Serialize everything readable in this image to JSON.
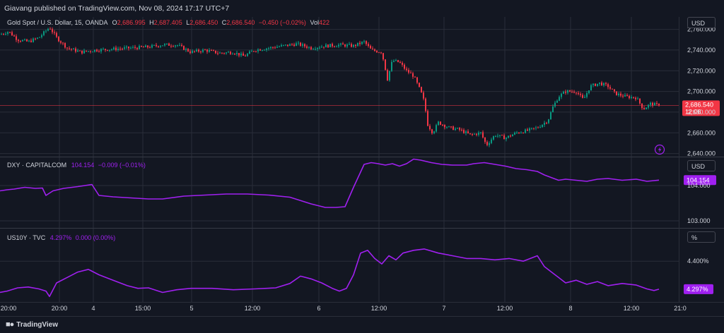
{
  "header": {
    "published": "Giavang published on TradingView.com, Nov 08, 2024 17:17 UTC+7"
  },
  "footer": {
    "brand": "TradingView"
  },
  "colors": {
    "bg": "#131722",
    "up": "#089981",
    "down": "#f23645",
    "line": "#a020f0",
    "grid": "#2a2e39",
    "priceline": "#f23645"
  },
  "panes": {
    "gold": {
      "name": "Gold Spot / U.S. Dollar, 15, OANDA",
      "o_label": "O",
      "o": "2,686.995",
      "h_label": "H",
      "h": "2,687.405",
      "l_label": "L",
      "l": "2,686.450",
      "c_label": "C",
      "c": "2,686.540",
      "chg": "−0.450 (−0.02%)",
      "vol_label": "Vol",
      "vol": "422",
      "currency": "USD",
      "last_price": "2,686.540",
      "countdown": "12:06",
      "yticks": [
        "2,760.000",
        "2,740.000",
        "2,720.000",
        "2,700.000",
        "2,680.000",
        "2,660.000",
        "2,640.000"
      ]
    },
    "dxy": {
      "name": "DXY · CAPITALCOM",
      "value": "104.154",
      "chg": "−0.009 (−0.01%)",
      "currency": "USD",
      "yticks": [
        "104.000",
        "103.000"
      ],
      "last_label": "104.154"
    },
    "us10y": {
      "name": "US10Y · TVC",
      "value": "4.297%",
      "chg": "0.000 (0.00%)",
      "currency": "%",
      "yticks": [
        "4.400%"
      ],
      "last_label": "4.297%"
    }
  },
  "xticks": [
    "20:00",
    "20:00",
    "4",
    "15:00",
    "5",
    "12:00",
    "6",
    "12:00",
    "7",
    "12:00",
    "8",
    "12:00",
    "21:0"
  ],
  "chart_data": [
    {
      "type": "candlestick",
      "title": "Gold Spot / U.S. Dollar, 15, OANDA",
      "ylabel": "USD",
      "ylim": [
        2637,
        2772
      ],
      "x_labels": [
        "20:00",
        "4",
        "15:00",
        "5",
        "12:00",
        "6",
        "12:00",
        "7",
        "12:00",
        "8",
        "12:00"
      ],
      "close_path": [
        [
          0,
          2755
        ],
        [
          12,
          2758
        ],
        [
          25,
          2750
        ],
        [
          40,
          2748
        ],
        [
          55,
          2752
        ],
        [
          70,
          2762
        ],
        [
          80,
          2752
        ],
        [
          95,
          2742
        ],
        [
          115,
          2738
        ],
        [
          135,
          2740
        ],
        [
          160,
          2741
        ],
        [
          185,
          2742
        ],
        [
          210,
          2743
        ],
        [
          230,
          2745
        ],
        [
          250,
          2745
        ],
        [
          270,
          2738
        ],
        [
          290,
          2740
        ],
        [
          310,
          2737
        ],
        [
          330,
          2738
        ],
        [
          345,
          2734
        ],
        [
          360,
          2740
        ],
        [
          380,
          2742
        ],
        [
          400,
          2744
        ],
        [
          420,
          2746
        ],
        [
          440,
          2742
        ],
        [
          460,
          2744
        ],
        [
          480,
          2745
        ],
        [
          500,
          2744
        ],
        [
          515,
          2748
        ],
        [
          525,
          2740
        ],
        [
          540,
          2738
        ],
        [
          548,
          2712
        ],
        [
          555,
          2730
        ],
        [
          565,
          2728
        ],
        [
          575,
          2720
        ],
        [
          585,
          2715
        ],
        [
          595,
          2700
        ],
        [
          600,
          2690
        ],
        [
          605,
          2668
        ],
        [
          612,
          2660
        ],
        [
          620,
          2670
        ],
        [
          635,
          2665
        ],
        [
          650,
          2663
        ],
        [
          665,
          2658
        ],
        [
          680,
          2660
        ],
        [
          688,
          2648
        ],
        [
          700,
          2658
        ],
        [
          715,
          2655
        ],
        [
          730,
          2660
        ],
        [
          745,
          2662
        ],
        [
          760,
          2665
        ],
        [
          775,
          2672
        ],
        [
          782,
          2685
        ],
        [
          790,
          2695
        ],
        [
          800,
          2700
        ],
        [
          815,
          2700
        ],
        [
          825,
          2692
        ],
        [
          835,
          2705
        ],
        [
          848,
          2708
        ],
        [
          860,
          2705
        ],
        [
          870,
          2698
        ],
        [
          885,
          2695
        ],
        [
          900,
          2694
        ],
        [
          910,
          2683
        ],
        [
          920,
          2688
        ],
        [
          932,
          2686.54
        ]
      ],
      "last": 2686.54
    },
    {
      "type": "line",
      "title": "DXY · CAPITALCOM",
      "ylabel": "USD",
      "ylim": [
        102.8,
        104.8
      ],
      "x": [
        0,
        10,
        20,
        35,
        50,
        60,
        65,
        75,
        90,
        110,
        130,
        140,
        160,
        185,
        210,
        230,
        260,
        290,
        320,
        350,
        380,
        410,
        440,
        460,
        475,
        488,
        500,
        515,
        525,
        535,
        545,
        555,
        565,
        575,
        585,
        595,
        610,
        625,
        640,
        660,
        670,
        685,
        700,
        715,
        730,
        745,
        760,
        770,
        790,
        800,
        815,
        830,
        845,
        860,
        880,
        900,
        915,
        932
      ],
      "y": [
        103.85,
        103.88,
        103.9,
        103.95,
        103.92,
        103.93,
        103.72,
        103.85,
        103.92,
        103.97,
        104.03,
        103.72,
        103.68,
        103.65,
        103.62,
        103.62,
        103.7,
        103.73,
        103.76,
        103.76,
        103.73,
        103.67,
        103.48,
        103.38,
        103.38,
        103.4,
        103.95,
        104.6,
        104.65,
        104.62,
        104.58,
        104.62,
        104.55,
        104.62,
        104.75,
        104.72,
        104.65,
        104.6,
        104.58,
        104.58,
        104.62,
        104.65,
        104.6,
        104.55,
        104.48,
        104.45,
        104.4,
        104.3,
        104.15,
        104.18,
        104.15,
        104.12,
        104.18,
        104.2,
        104.15,
        104.18,
        104.12,
        104.154
      ]
    },
    {
      "type": "line",
      "title": "US10Y · TVC",
      "ylabel": "%",
      "ylim": [
        4.25,
        4.52
      ],
      "x": [
        0,
        10,
        25,
        40,
        55,
        65,
        70,
        80,
        95,
        110,
        125,
        140,
        160,
        180,
        195,
        210,
        230,
        250,
        270,
        300,
        330,
        360,
        390,
        410,
        425,
        440,
        455,
        470,
        480,
        490,
        500,
        510,
        520,
        530,
        540,
        550,
        560,
        570,
        585,
        600,
        620,
        640,
        660,
        680,
        700,
        720,
        740,
        760,
        770,
        780,
        790,
        800,
        815,
        830,
        845,
        860,
        880,
        900,
        915,
        925,
        932
      ],
      "y": [
        4.285,
        4.29,
        4.302,
        4.305,
        4.298,
        4.29,
        4.27,
        4.32,
        4.34,
        4.36,
        4.37,
        4.35,
        4.33,
        4.31,
        4.3,
        4.302,
        4.285,
        4.295,
        4.3,
        4.3,
        4.295,
        4.298,
        4.302,
        4.318,
        4.345,
        4.335,
        4.32,
        4.3,
        4.29,
        4.3,
        4.35,
        4.43,
        4.44,
        4.41,
        4.39,
        4.42,
        4.405,
        4.43,
        4.44,
        4.445,
        4.43,
        4.42,
        4.41,
        4.41,
        4.405,
        4.41,
        4.4,
        4.42,
        4.38,
        4.36,
        4.34,
        4.32,
        4.33,
        4.315,
        4.325,
        4.31,
        4.318,
        4.312,
        4.298,
        4.292,
        4.297
      ]
    }
  ]
}
